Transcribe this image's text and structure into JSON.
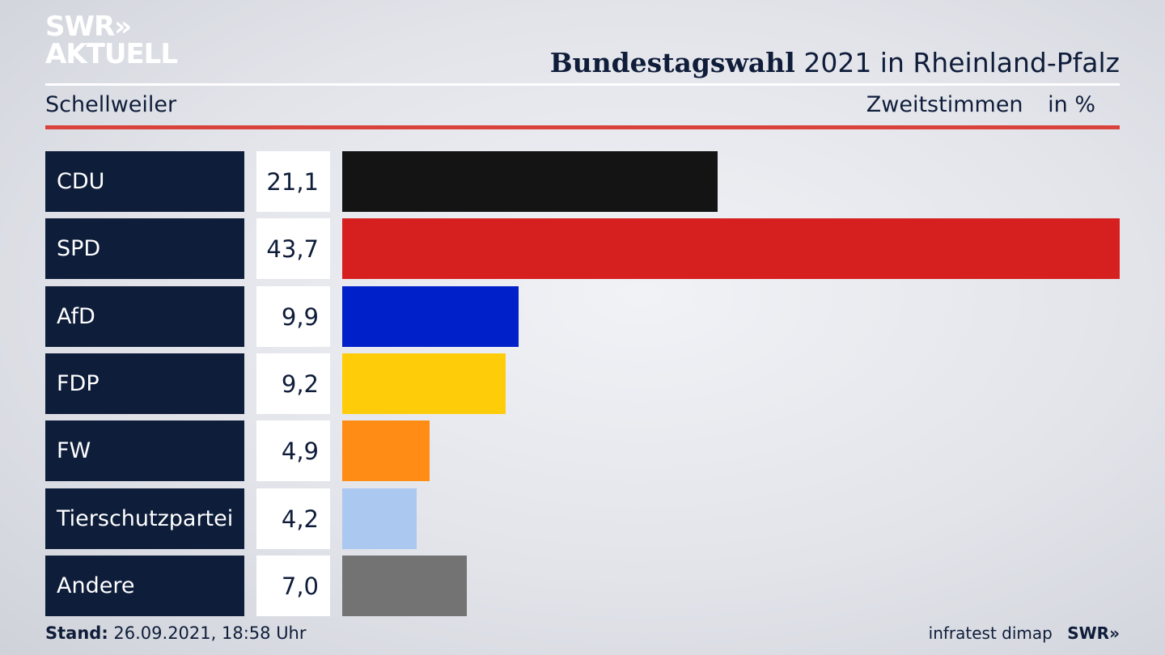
{
  "header": {
    "logo_line1": "SWR»",
    "logo_line2": "AKTUELL",
    "title_bold": "Bundestagswahl",
    "title_rest": "2021 in Rheinland-Pfalz",
    "location": "Schellweiler",
    "vote_type": "Zweitstimmen",
    "unit": "in %"
  },
  "chart_data": {
    "type": "bar",
    "orientation": "horizontal",
    "categories": [
      "CDU",
      "SPD",
      "AfD",
      "FDP",
      "FW",
      "Tierschutzpartei",
      "Andere"
    ],
    "values": [
      21.1,
      43.7,
      9.9,
      9.2,
      4.9,
      4.2,
      7.0
    ],
    "value_labels": [
      "21,1",
      "43,7",
      "9,9",
      "9,2",
      "4,9",
      "4,2",
      "7,0"
    ],
    "colors": [
      "#141414",
      "#d62020",
      "#0021c9",
      "#ffcc0a",
      "#ff8c14",
      "#aac8f0",
      "#737373"
    ],
    "xlim": [
      0,
      43.7
    ],
    "title": "Bundestagswahl 2021 in Rheinland-Pfalz",
    "xlabel": "",
    "ylabel": ""
  },
  "footer": {
    "stand_label": "Stand:",
    "stand_value": "26.09.2021, 18:58 Uhr",
    "source": "infratest dimap",
    "brand": "SWR»"
  }
}
